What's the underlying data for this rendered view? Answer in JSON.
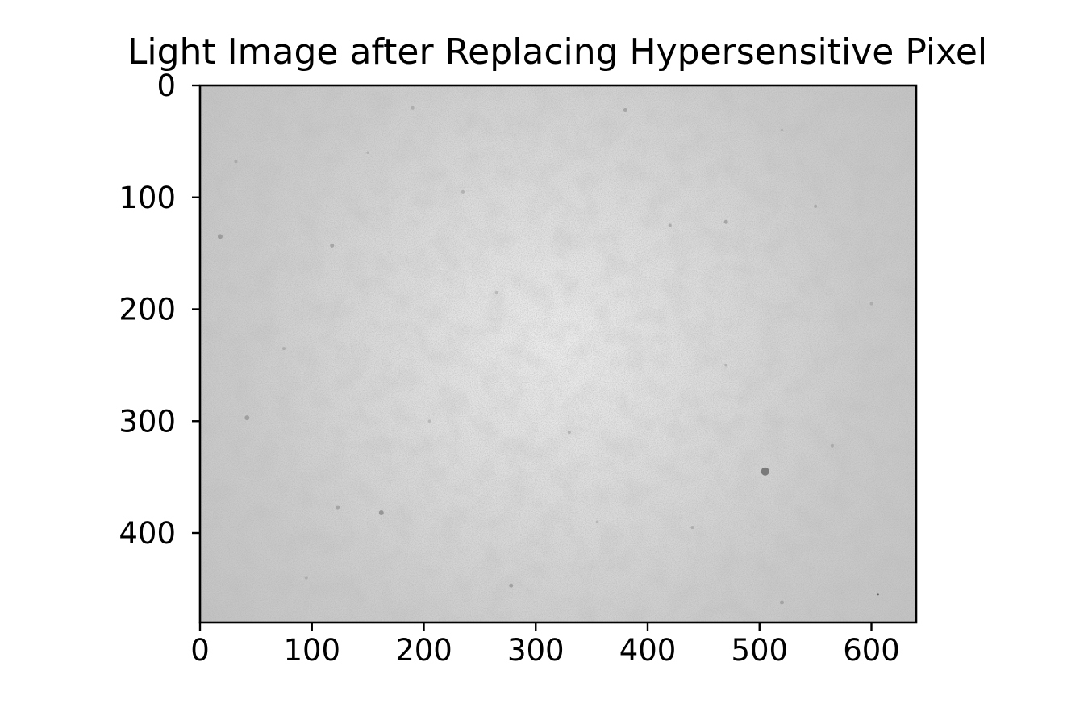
{
  "chart_data": {
    "type": "heatmap",
    "title": "Light Image after Replacing Hypersensitive Pixel",
    "xlabel": "",
    "ylabel": "",
    "colormap": "gray",
    "image_width": 640,
    "image_height": 480,
    "xlim": [
      0,
      640
    ],
    "ylim": [
      480,
      0
    ],
    "y_inverted": true,
    "x_ticks": [
      0,
      100,
      200,
      300,
      400,
      500,
      600
    ],
    "x_tick_labels": [
      "0",
      "100",
      "200",
      "300",
      "400",
      "500",
      "600"
    ],
    "y_ticks": [
      0,
      100,
      200,
      300,
      400
    ],
    "y_tick_labels": [
      "0",
      "100",
      "200",
      "300",
      "400"
    ],
    "grid": false,
    "legend": "none",
    "intensity": {
      "center": [
        315,
        230
      ],
      "center_level": 0.93,
      "edge_level": 0.78,
      "corner_level": 0.74
    },
    "dark_specks": [
      {
        "x": 505,
        "y": 345,
        "size": 5,
        "level": 0.42
      },
      {
        "x": 162,
        "y": 382,
        "size": 3,
        "level": 0.55
      },
      {
        "x": 18,
        "y": 135,
        "size": 3,
        "level": 0.58
      },
      {
        "x": 42,
        "y": 297,
        "size": 3,
        "level": 0.6
      },
      {
        "x": 118,
        "y": 143,
        "size": 2.5,
        "level": 0.62
      },
      {
        "x": 123,
        "y": 377,
        "size": 2.5,
        "level": 0.62
      },
      {
        "x": 278,
        "y": 447,
        "size": 2.5,
        "level": 0.6
      },
      {
        "x": 380,
        "y": 22,
        "size": 2.5,
        "level": 0.62
      },
      {
        "x": 470,
        "y": 122,
        "size": 2.5,
        "level": 0.62
      },
      {
        "x": 420,
        "y": 125,
        "size": 2,
        "level": 0.64
      },
      {
        "x": 550,
        "y": 108,
        "size": 2,
        "level": 0.64
      },
      {
        "x": 32,
        "y": 68,
        "size": 2,
        "level": 0.65
      },
      {
        "x": 190,
        "y": 20,
        "size": 2,
        "level": 0.66
      },
      {
        "x": 565,
        "y": 322,
        "size": 2,
        "level": 0.65
      },
      {
        "x": 520,
        "y": 462,
        "size": 2.5,
        "level": 0.62
      },
      {
        "x": 75,
        "y": 235,
        "size": 2,
        "level": 0.66
      },
      {
        "x": 235,
        "y": 95,
        "size": 2,
        "level": 0.67
      },
      {
        "x": 440,
        "y": 395,
        "size": 2,
        "level": 0.66
      },
      {
        "x": 606,
        "y": 455,
        "size": 1,
        "level": 0.3
      },
      {
        "x": 330,
        "y": 310,
        "size": 2,
        "level": 0.68
      },
      {
        "x": 600,
        "y": 195,
        "size": 2,
        "level": 0.66
      },
      {
        "x": 95,
        "y": 440,
        "size": 2,
        "level": 0.66
      },
      {
        "x": 265,
        "y": 185,
        "size": 1.8,
        "level": 0.7
      },
      {
        "x": 355,
        "y": 390,
        "size": 1.8,
        "level": 0.7
      },
      {
        "x": 470,
        "y": 250,
        "size": 1.8,
        "level": 0.68
      },
      {
        "x": 205,
        "y": 300,
        "size": 1.8,
        "level": 0.7
      },
      {
        "x": 150,
        "y": 60,
        "size": 1.8,
        "level": 0.68
      },
      {
        "x": 520,
        "y": 40,
        "size": 1.8,
        "level": 0.68
      }
    ]
  }
}
